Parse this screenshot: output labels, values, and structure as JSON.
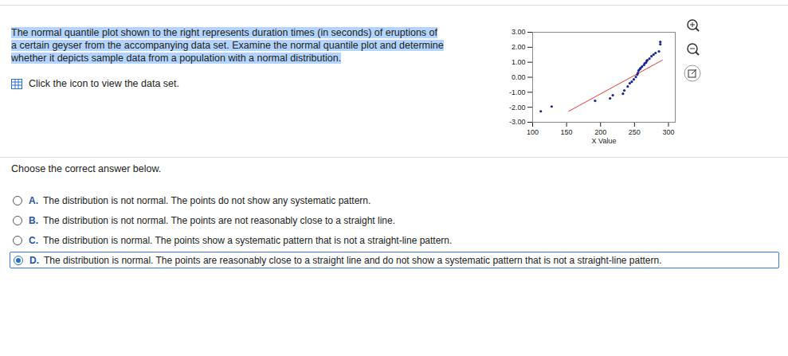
{
  "question_text": "The normal quantile plot shown to the right represents duration times (in seconds) of eruptions of a certain geyser from the accompanying data set. Examine the normal quantile plot and determine whether it depicts sample data from a population with a normal distribution.",
  "link_text": "Click the icon to view the data set.",
  "chart_data": {
    "type": "scatter",
    "xlabel": "X Value",
    "xlim": [
      100,
      310
    ],
    "xticks": [
      100,
      150,
      200,
      250,
      300
    ],
    "ylim": [
      -3,
      3
    ],
    "yticks": [
      {
        "value": 3,
        "label": "3.00"
      },
      {
        "value": 2,
        "label": "2.00"
      },
      {
        "value": 1,
        "label": "1.00"
      },
      {
        "value": 0,
        "label": "0.00"
      },
      {
        "value": -1,
        "label": "-1.00"
      },
      {
        "value": -2,
        "label": "-2.00"
      },
      {
        "value": -3,
        "label": "-3.00"
      }
    ],
    "color": "#1a2a8c",
    "x": [
      112,
      128,
      192,
      214,
      218,
      233,
      235,
      240,
      243,
      246,
      249,
      252,
      254,
      255,
      256,
      258,
      259,
      261,
      264,
      265,
      267,
      268,
      269,
      272,
      275,
      278,
      281,
      286,
      288,
      288
    ],
    "y": [
      -2.27,
      -1.95,
      -1.57,
      -1.41,
      -1.2,
      -1.1,
      -0.88,
      -0.62,
      -0.4,
      -0.3,
      -0.14,
      0.02,
      0.18,
      0.29,
      0.45,
      0.55,
      0.61,
      0.71,
      0.82,
      0.93,
      0.98,
      1.09,
      1.14,
      1.24,
      1.4,
      1.51,
      1.62,
      1.72,
      2.2,
      2.36
    ],
    "line": {
      "x": [
        153,
        291
      ],
      "y": [
        -2.27,
        1.14
      ],
      "color": "#e53935"
    }
  },
  "instruction": "Choose the correct answer below.",
  "choices": [
    {
      "letter": "A.",
      "text": "The distribution is not normal. The points do not show any systematic pattern."
    },
    {
      "letter": "B.",
      "text": "The distribution is not normal. The points are not reasonably close to a straight line."
    },
    {
      "letter": "C.",
      "text": "The distribution is normal. The points show a systematic pattern that is not a straight-line pattern."
    },
    {
      "letter": "D.",
      "text": "The distribution is normal. The points are reasonably close to a straight line and do not show a systematic pattern that is not a straight-line pattern."
    }
  ],
  "selected": "D."
}
